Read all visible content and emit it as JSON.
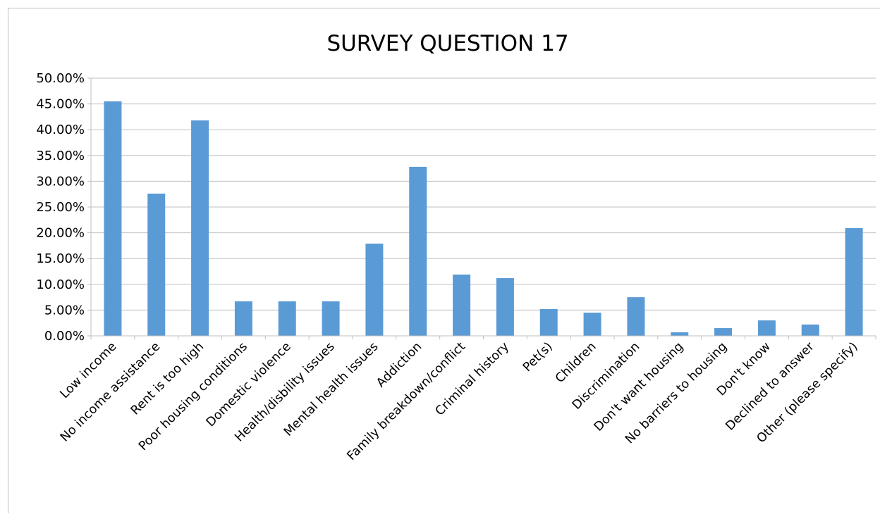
{
  "chart_data": {
    "type": "bar",
    "title": "SURVEY QUESTION 17",
    "xlabel": "",
    "ylabel": "",
    "ylim": [
      0,
      0.5
    ],
    "y_ticks": [
      "0.00%",
      "5.00%",
      "10.00%",
      "15.00%",
      "20.00%",
      "25.00%",
      "30.00%",
      "35.00%",
      "40.00%",
      "45.00%",
      "50.00%"
    ],
    "grid": true,
    "legend": "none",
    "bar_color": "#5b9bd5",
    "categories": [
      "Low income",
      "No income assistance",
      "Rent is too high",
      "Poor housing conditions",
      "Domestic violence",
      "Health/disbility issues",
      "Mental health issues",
      "Addiction",
      "Family breakdown/conflict",
      "Criminal history",
      "Pet(s)",
      "Children",
      "Discrimination",
      "Don't want housing",
      "No barriers to housing",
      "Don't know",
      "Declined to answer",
      "Other (please specify)"
    ],
    "values": [
      0.455,
      0.276,
      0.418,
      0.067,
      0.067,
      0.067,
      0.179,
      0.328,
      0.119,
      0.112,
      0.052,
      0.045,
      0.075,
      0.007,
      0.015,
      0.03,
      0.022,
      0.209
    ]
  }
}
